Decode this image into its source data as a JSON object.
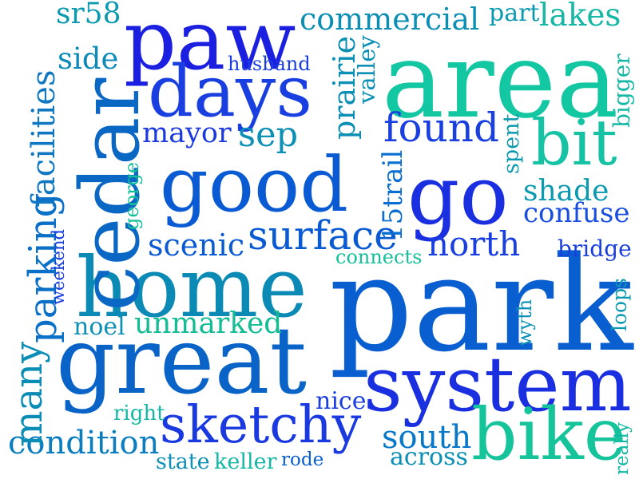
{
  "words": [
    {
      "text": "park",
      "color": "#0a5fd0",
      "rotated": false
    },
    {
      "text": "area",
      "color": "#12c7a2",
      "rotated": false
    },
    {
      "text": "great",
      "color": "#0a64c8",
      "rotated": false
    },
    {
      "text": "home",
      "color": "#0b8ab5",
      "rotated": false
    },
    {
      "text": "good",
      "color": "#0a5ad4",
      "rotated": false
    },
    {
      "text": "system",
      "color": "#1a2fe0",
      "rotated": false
    },
    {
      "text": "paw",
      "color": "#1a1fe0",
      "rotated": false
    },
    {
      "text": "cedar",
      "color": "#0a68c4",
      "rotated": true
    },
    {
      "text": "days",
      "color": "#1a3fe0",
      "rotated": false
    },
    {
      "text": "bike",
      "color": "#15c49a",
      "rotated": false
    },
    {
      "text": "bit",
      "color": "#15c3a4",
      "rotated": false
    },
    {
      "text": "go",
      "color": "#1a2fe0",
      "rotated": false
    },
    {
      "text": "sketchy",
      "color": "#1a3ae0",
      "rotated": false
    },
    {
      "text": "facilities",
      "color": "#1078c2",
      "rotated": true
    },
    {
      "text": "parking",
      "color": "#0a70c8",
      "rotated": true
    },
    {
      "text": "surface",
      "color": "#0a5ad4",
      "rotated": false
    },
    {
      "text": "found",
      "color": "#1a3fe0",
      "rotated": false
    },
    {
      "text": "condition",
      "color": "#0c7ec0",
      "rotated": false
    },
    {
      "text": "commercial",
      "color": "#0c8fb5",
      "rotated": false
    },
    {
      "text": "unmarked",
      "color": "#14bc94",
      "rotated": false
    },
    {
      "text": "north",
      "color": "#1a3fe0",
      "rotated": false
    },
    {
      "text": "confuse",
      "color": "#1a4ee0",
      "rotated": false
    },
    {
      "text": "scenic",
      "color": "#0a5ad4",
      "rotated": false
    },
    {
      "text": "shade",
      "color": "#0c9ab0",
      "rotated": false
    },
    {
      "text": "many",
      "color": "#0c8db5",
      "rotated": true
    },
    {
      "text": "south",
      "color": "#0a78c8",
      "rotated": false
    },
    {
      "text": "prairie",
      "color": "#0c8fb5",
      "rotated": true
    },
    {
      "text": "mayor",
      "color": "#1a3ae0",
      "rotated": false
    },
    {
      "text": "side",
      "color": "#0c8ab8",
      "rotated": false
    },
    {
      "text": "lakes",
      "color": "#14b8a4",
      "rotated": false
    },
    {
      "text": "sr58",
      "color": "#0c9ab0",
      "rotated": false
    },
    {
      "text": "across",
      "color": "#0c8fb5",
      "rotated": false
    },
    {
      "text": "bridge",
      "color": "#1a3fe0",
      "rotated": false
    },
    {
      "text": "15trail",
      "color": "#0a6fd0",
      "rotated": true
    },
    {
      "text": "noel",
      "color": "#0c90b5",
      "rotated": false
    },
    {
      "text": "keller",
      "color": "#14b8a4",
      "rotated": false
    },
    {
      "text": "husband",
      "color": "#1a3fe0",
      "rotated": false
    },
    {
      "text": "part",
      "color": "#0c9ab0",
      "rotated": false
    },
    {
      "text": "bigger",
      "color": "#14b8a4",
      "rotated": true
    },
    {
      "text": "valley",
      "color": "#0c90b5",
      "rotated": true
    },
    {
      "text": "weekend",
      "color": "#1a3fe0",
      "rotated": true
    },
    {
      "text": "loops",
      "color": "#0c9ab0",
      "rotated": true
    },
    {
      "text": "wyth",
      "color": "#0c90b5",
      "rotated": true
    },
    {
      "text": "sep",
      "color": "#0c90b5",
      "rotated": false
    },
    {
      "text": "spent",
      "color": "#0c9ab0",
      "rotated": true
    },
    {
      "text": "george",
      "color": "#14c09a",
      "rotated": true
    },
    {
      "text": "connects",
      "color": "#14c09a",
      "rotated": false
    },
    {
      "text": "right",
      "color": "#14b8a4",
      "rotated": false
    },
    {
      "text": "nice",
      "color": "#1a3fe0",
      "rotated": false
    },
    {
      "text": "state",
      "color": "#0c90b5",
      "rotated": false
    },
    {
      "text": "rode",
      "color": "#0a5fd0",
      "rotated": false
    },
    {
      "text": "really",
      "color": "#14b8a4",
      "rotated": true
    }
  ]
}
